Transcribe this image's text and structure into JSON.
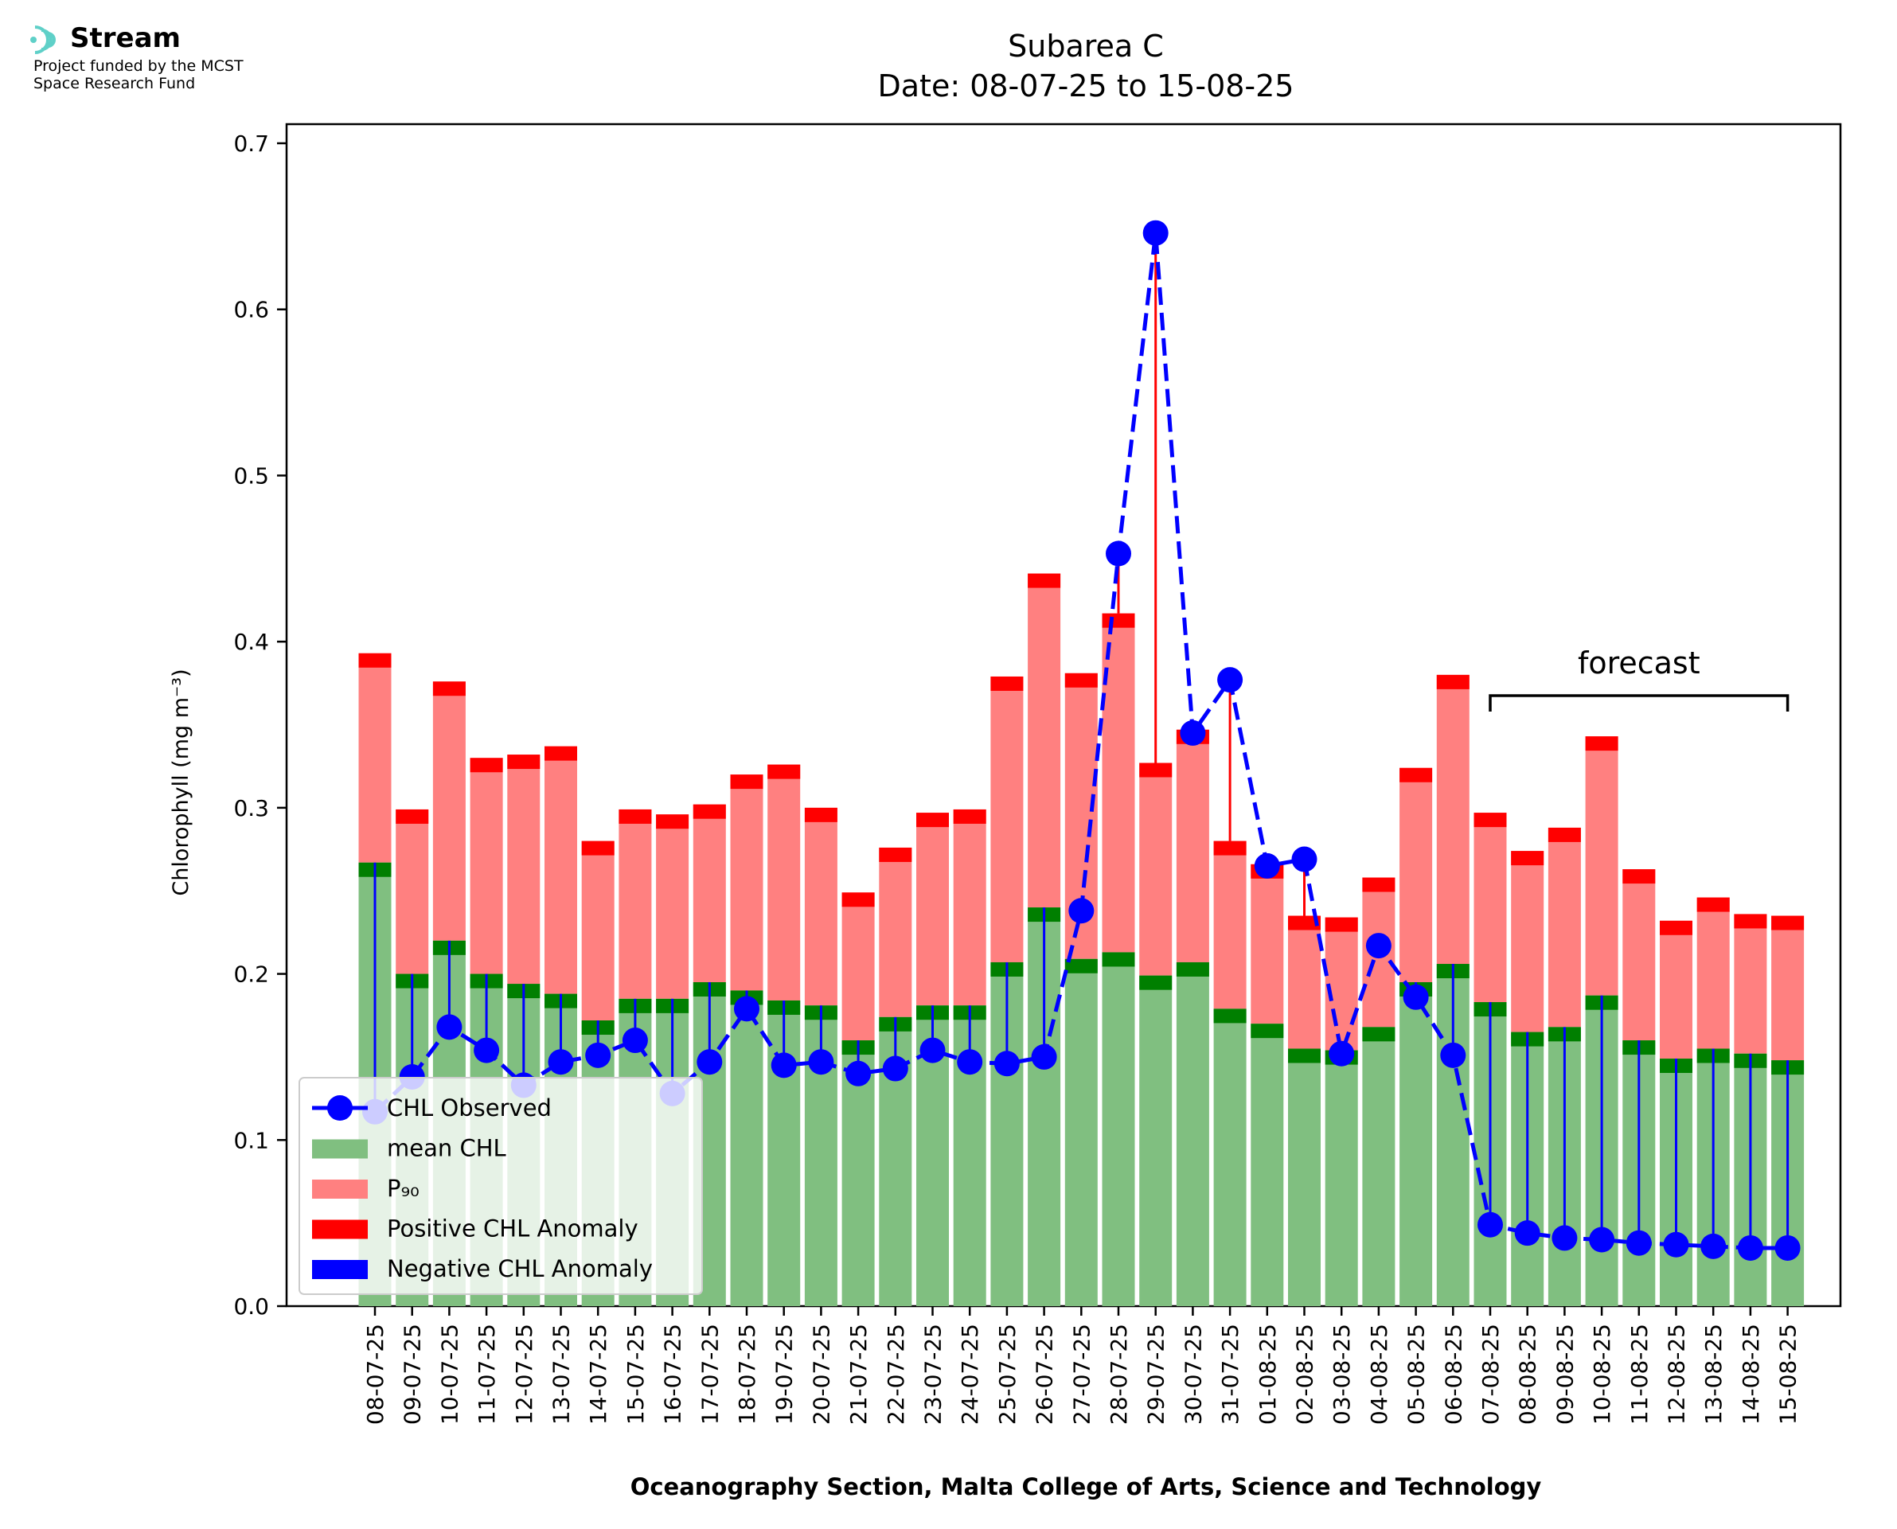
{
  "logo": {
    "brand": "Stream",
    "line1": "Project funded by the MCST",
    "line2": "Space Research Fund",
    "icon": "stream-waves-icon",
    "icon_color": "#5fd0c8"
  },
  "chart_data": {
    "type": "bar",
    "title": "Subarea C",
    "subtitle": "Date: 08-07-25 to 15-08-25",
    "xlabel": "Oceanography Section, Malta College of Arts, Science and Technology",
    "ylabel": "Chlorophyll (mg m⁻³)",
    "ylim": [
      0,
      0.71
    ],
    "yticks": [
      "0.0",
      "0.1",
      "0.2",
      "0.3",
      "0.4",
      "0.5",
      "0.6",
      "0.7"
    ],
    "grid": false,
    "legend_placement": "lower-left",
    "categories": [
      "08-07-25",
      "09-07-25",
      "10-07-25",
      "11-07-25",
      "12-07-25",
      "13-07-25",
      "14-07-25",
      "15-07-25",
      "16-07-25",
      "17-07-25",
      "18-07-25",
      "19-07-25",
      "20-07-25",
      "21-07-25",
      "22-07-25",
      "23-07-25",
      "24-07-25",
      "25-07-25",
      "26-07-25",
      "27-07-25",
      "28-07-25",
      "29-07-25",
      "30-07-25",
      "31-07-25",
      "01-08-25",
      "02-08-25",
      "03-08-25",
      "04-08-25",
      "05-08-25",
      "06-08-25",
      "07-08-25",
      "08-08-25",
      "09-08-25",
      "10-08-25",
      "11-08-25",
      "12-08-25",
      "13-08-25",
      "14-08-25",
      "15-08-25"
    ],
    "series": [
      {
        "name": "CHL Observed",
        "color": "#0000ff",
        "values": [
          0.117,
          0.138,
          0.168,
          0.154,
          0.133,
          0.147,
          0.151,
          0.16,
          0.128,
          0.147,
          0.179,
          0.145,
          0.147,
          0.14,
          0.143,
          0.154,
          0.147,
          0.146,
          0.15,
          0.238,
          0.453,
          0.646,
          0.345,
          0.377,
          0.265,
          0.269,
          0.152,
          0.217,
          0.186,
          0.151,
          0.049,
          0.044,
          0.041,
          0.04,
          0.038,
          0.037,
          0.036,
          0.035,
          0.035
        ]
      },
      {
        "name": "mean CHL",
        "color": "#80bf80",
        "values": [
          0.267,
          0.2,
          0.22,
          0.2,
          0.194,
          0.188,
          0.172,
          0.185,
          0.185,
          0.195,
          0.19,
          0.184,
          0.181,
          0.16,
          0.174,
          0.181,
          0.181,
          0.207,
          0.24,
          0.209,
          0.213,
          0.199,
          0.207,
          0.179,
          0.17,
          0.155,
          0.154,
          0.168,
          0.195,
          0.206,
          0.183,
          0.165,
          0.168,
          0.187,
          0.16,
          0.149,
          0.155,
          0.152,
          0.148
        ]
      },
      {
        "name": "P₉₀",
        "color": "#ff8080",
        "values": [
          0.393,
          0.299,
          0.376,
          0.33,
          0.332,
          0.337,
          0.28,
          0.299,
          0.296,
          0.302,
          0.32,
          0.326,
          0.3,
          0.249,
          0.276,
          0.297,
          0.299,
          0.379,
          0.441,
          0.381,
          0.417,
          0.327,
          0.347,
          0.28,
          0.266,
          0.235,
          0.234,
          0.258,
          0.324,
          0.38,
          0.297,
          0.274,
          0.288,
          0.343,
          0.263,
          0.232,
          0.246,
          0.236,
          0.235
        ]
      },
      {
        "name": "Positive CHL Anomaly",
        "color": "#ff0000"
      },
      {
        "name": "Negative CHL Anomaly",
        "color": "#0000ff"
      }
    ],
    "annotation": {
      "text": "forecast",
      "from": "07-08-25",
      "to": "15-08-25"
    }
  }
}
